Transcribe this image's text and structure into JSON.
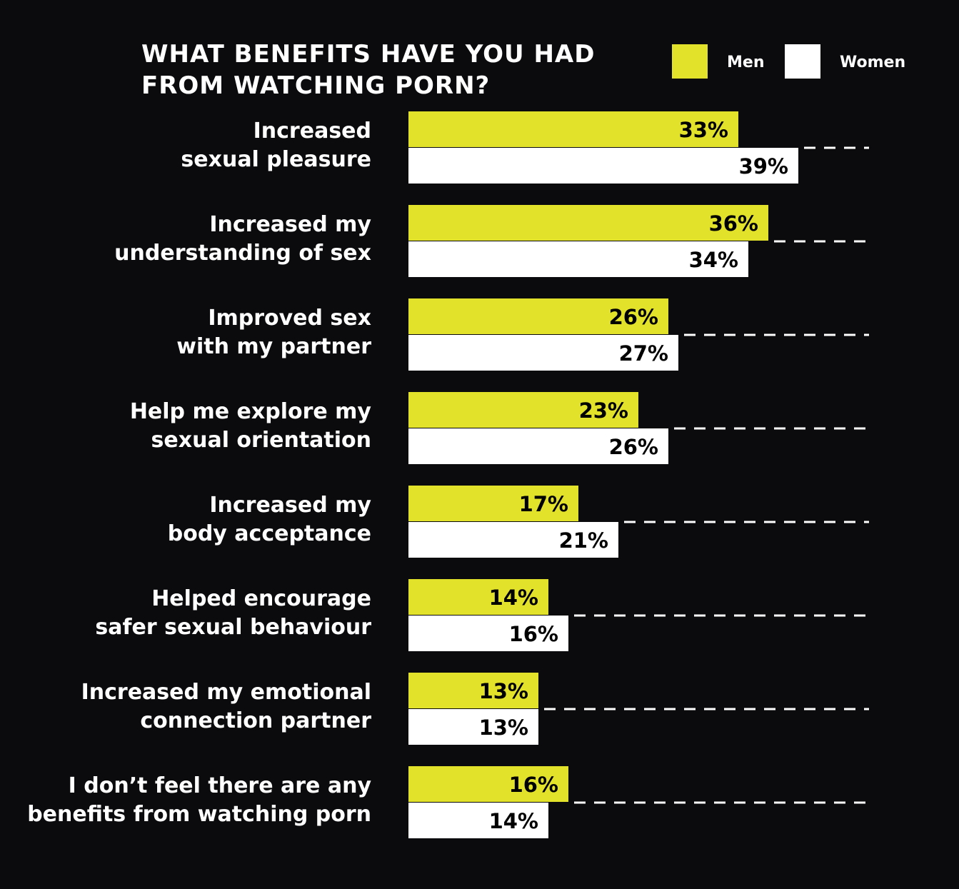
{
  "chart_data": {
    "type": "hbar_grouped",
    "title": "WHAT BENEFITS HAVE YOU HAD\nFROM WATCHING PORN?",
    "categories": [
      "Increased\nsexual pleasure",
      "Increased my\nunderstanding of sex",
      "Improved sex\nwith my partner",
      "Help me explore my\nsexual orientation",
      "Increased my\nbody acceptance",
      "Helped encourage\nsafer sexual behaviour",
      "Increased my emotional\nconnection partner",
      "I don’t feel there are any\nbenefits from watching porn"
    ],
    "series": [
      {
        "name": "Men",
        "color": "#e3e22a",
        "values": [
          33,
          36,
          26,
          23,
          17,
          14,
          13,
          16
        ],
        "value_labels": [
          "33%",
          "36%",
          "26%",
          "23%",
          "17%",
          "14%",
          "13%",
          "16%"
        ]
      },
      {
        "name": "Women",
        "color": "#ffffff",
        "values": [
          39,
          34,
          27,
          26,
          21,
          16,
          13,
          14
        ],
        "value_labels": [
          "39%",
          "34%",
          "27%",
          "26%",
          "21%",
          "16%",
          "13%",
          "14%"
        ]
      }
    ],
    "legend": "top-right"
  }
}
